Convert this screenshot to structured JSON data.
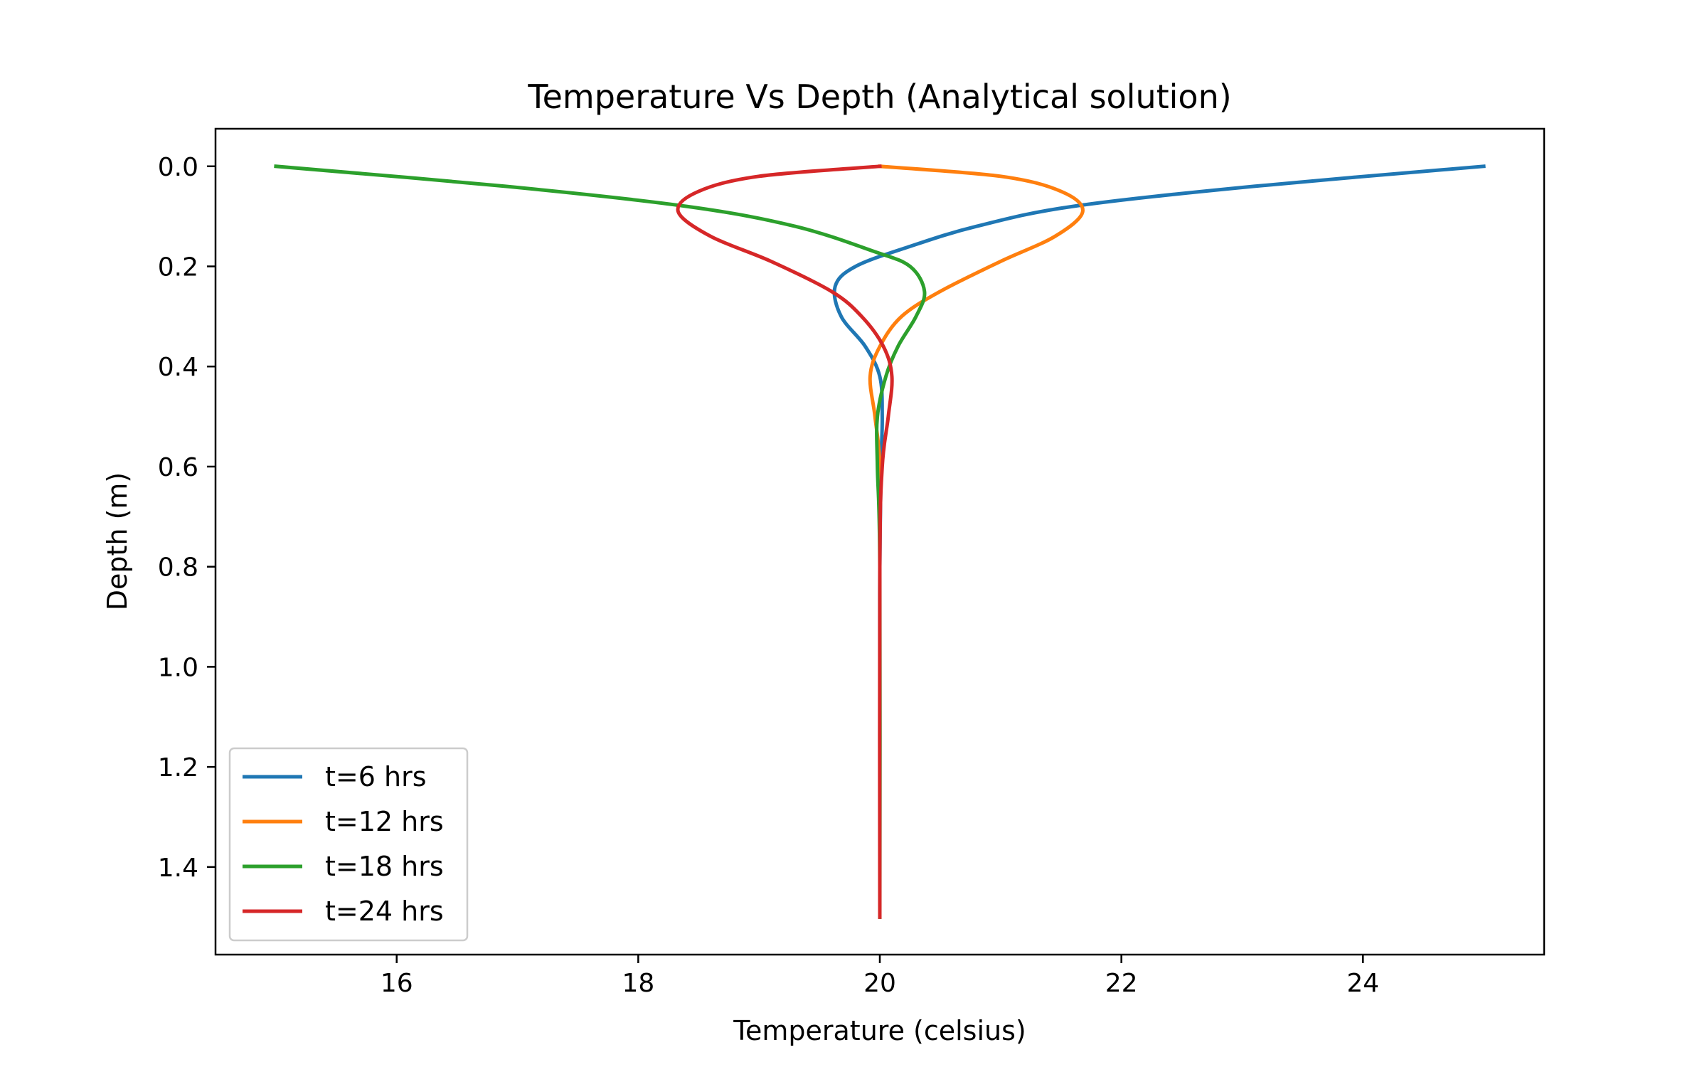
{
  "chart_data": {
    "type": "line",
    "title": "Temperature Vs Depth (Analytical solution)",
    "xlabel": "Temperature (celsius)",
    "ylabel": "Depth (m)",
    "xlim": [
      14.5,
      25.5
    ],
    "ylim": [
      1.575,
      -0.075
    ],
    "y_inverted": true,
    "xticks": [
      16,
      18,
      20,
      22,
      24
    ],
    "xtick_labels": [
      "16",
      "18",
      "20",
      "22",
      "24"
    ],
    "yticks": [
      0.0,
      0.2,
      0.4,
      0.6,
      0.8,
      1.0,
      1.2,
      1.4
    ],
    "ytick_labels": [
      "0.0",
      "0.2",
      "0.4",
      "0.6",
      "0.8",
      "1.0",
      "1.2",
      "1.4"
    ],
    "grid": false,
    "legend_position": "lower-left",
    "series": [
      {
        "name": "t=6 hrs",
        "color": "#1f77b4",
        "points": [
          [
            25.0,
            0.0
          ],
          [
            23.1,
            0.04
          ],
          [
            21.6,
            0.08
          ],
          [
            20.8,
            0.12
          ],
          [
            20.25,
            0.16
          ],
          [
            19.8,
            0.2
          ],
          [
            19.63,
            0.24
          ],
          [
            19.68,
            0.3
          ],
          [
            19.88,
            0.36
          ],
          [
            20.0,
            0.42
          ],
          [
            20.02,
            0.5
          ],
          [
            20.01,
            0.6
          ],
          [
            20.0,
            0.8
          ],
          [
            20.0,
            1.0
          ],
          [
            20.0,
            1.5
          ]
        ]
      },
      {
        "name": "t=12 hrs",
        "color": "#ff7f0e",
        "points": [
          [
            20.0,
            0.0
          ],
          [
            21.0,
            0.02
          ],
          [
            21.5,
            0.05
          ],
          [
            21.68,
            0.09
          ],
          [
            21.45,
            0.14
          ],
          [
            21.0,
            0.19
          ],
          [
            20.5,
            0.25
          ],
          [
            20.18,
            0.3
          ],
          [
            20.0,
            0.36
          ],
          [
            19.92,
            0.42
          ],
          [
            19.96,
            0.5
          ],
          [
            20.0,
            0.6
          ],
          [
            20.0,
            0.8
          ],
          [
            20.0,
            1.5
          ]
        ]
      },
      {
        "name": "t=18 hrs",
        "color": "#2ca02c",
        "points": [
          [
            15.0,
            0.0
          ],
          [
            16.9,
            0.04
          ],
          [
            18.4,
            0.08
          ],
          [
            19.3,
            0.12
          ],
          [
            19.95,
            0.17
          ],
          [
            20.25,
            0.2
          ],
          [
            20.37,
            0.25
          ],
          [
            20.3,
            0.3
          ],
          [
            20.15,
            0.36
          ],
          [
            20.05,
            0.42
          ],
          [
            19.98,
            0.5
          ],
          [
            19.98,
            0.6
          ],
          [
            20.0,
            0.8
          ],
          [
            20.0,
            1.5
          ]
        ]
      },
      {
        "name": "t=24 hrs",
        "color": "#d62728",
        "points": [
          [
            20.0,
            0.0
          ],
          [
            19.0,
            0.02
          ],
          [
            18.5,
            0.05
          ],
          [
            18.33,
            0.09
          ],
          [
            18.6,
            0.14
          ],
          [
            19.1,
            0.19
          ],
          [
            19.6,
            0.25
          ],
          [
            19.85,
            0.3
          ],
          [
            20.03,
            0.36
          ],
          [
            20.1,
            0.42
          ],
          [
            20.07,
            0.5
          ],
          [
            20.02,
            0.6
          ],
          [
            20.0,
            0.8
          ],
          [
            20.0,
            1.5
          ]
        ]
      }
    ]
  }
}
